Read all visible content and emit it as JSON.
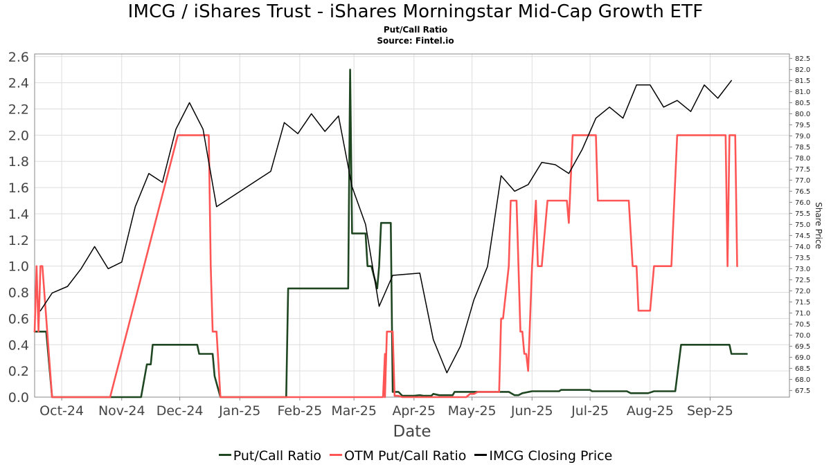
{
  "header": {
    "title": "IMCG / iShares Trust - iShares Morningstar Mid-Cap Growth ETF",
    "subtitle": "Put/Call Ratio",
    "source": "Source: Fintel.io"
  },
  "colors": {
    "put_call": "#1e4620",
    "otm_put_call": "#ff5555",
    "price": "#000000",
    "grid": "#dddddd"
  },
  "chart_data": {
    "type": "line",
    "title": "IMCG / iShares Trust - iShares Morningstar Mid-Cap Growth ETF",
    "subtitle": "Put/Call Ratio",
    "xlabel": "Date",
    "ylabel": "",
    "y2label": "Share Price",
    "xlim": [
      "2024-09-17",
      "2025-10-12"
    ],
    "ylim": [
      0,
      2.62
    ],
    "y2lim": [
      67.2,
      82.7
    ],
    "x_ticks": [
      {
        "date": "2024-10-01",
        "label": "Oct-24"
      },
      {
        "date": "2024-11-01",
        "label": "Nov-24"
      },
      {
        "date": "2024-12-01",
        "label": "Dec-24"
      },
      {
        "date": "2025-01-01",
        "label": "Jan-25"
      },
      {
        "date": "2025-02-01",
        "label": "Feb-25"
      },
      {
        "date": "2025-03-01",
        "label": "Mar-25"
      },
      {
        "date": "2025-04-01",
        "label": "Apr-25"
      },
      {
        "date": "2025-05-01",
        "label": "May-25"
      },
      {
        "date": "2025-06-01",
        "label": "Jun-25"
      },
      {
        "date": "2025-07-01",
        "label": "Jul-25"
      },
      {
        "date": "2025-08-01",
        "label": "Aug-25"
      },
      {
        "date": "2025-09-01",
        "label": "Sep-25"
      }
    ],
    "y_ticks": [
      "0.0",
      "0.2",
      "0.4",
      "0.6",
      "0.8",
      "1.0",
      "1.2",
      "1.4",
      "1.6",
      "1.8",
      "2.0",
      "2.2",
      "2.4",
      "2.6"
    ],
    "y2_ticks": [
      "67.5",
      "68.0",
      "68.5",
      "69.0",
      "69.5",
      "70.0",
      "70.5",
      "71.0",
      "71.5",
      "72.0",
      "72.5",
      "73.0",
      "73.5",
      "74.0",
      "74.5",
      "75.0",
      "75.5",
      "76.0",
      "76.5",
      "77.0",
      "77.5",
      "78.0",
      "78.5",
      "79.0",
      "79.5",
      "80.0",
      "80.5",
      "81.0",
      "81.5",
      "82.0",
      "82.5"
    ],
    "grid": true,
    "legend_position": "bottom",
    "series": [
      {
        "name": "Put/Call Ratio",
        "axis": "left",
        "points": [
          [
            "2024-09-17",
            0.5
          ],
          [
            "2024-09-20",
            0.5
          ],
          [
            "2024-09-23",
            0.5
          ],
          [
            "2024-09-26",
            0.0
          ],
          [
            "2024-10-15",
            0.0
          ],
          [
            "2024-11-01",
            0.0
          ],
          [
            "2024-11-11",
            0.0
          ],
          [
            "2024-11-14",
            0.25
          ],
          [
            "2024-11-16",
            0.25
          ],
          [
            "2024-11-17",
            0.4
          ],
          [
            "2024-12-10",
            0.4
          ],
          [
            "2024-12-11",
            0.33
          ],
          [
            "2024-12-18",
            0.33
          ],
          [
            "2024-12-19",
            0.16
          ],
          [
            "2024-12-22",
            0.0
          ],
          [
            "2025-01-25",
            0.0
          ],
          [
            "2025-01-26",
            0.83
          ],
          [
            "2025-02-24",
            0.83
          ],
          [
            "2025-02-26",
            0.83
          ],
          [
            "2025-02-27",
            2.5
          ],
          [
            "2025-02-28",
            1.25
          ],
          [
            "2025-03-07",
            1.25
          ],
          [
            "2025-03-08",
            1.0
          ],
          [
            "2025-03-10",
            1.0
          ],
          [
            "2025-03-13",
            0.83
          ],
          [
            "2025-03-14",
            1.0
          ],
          [
            "2025-03-15",
            1.33
          ],
          [
            "2025-03-20",
            1.33
          ],
          [
            "2025-03-21",
            0.04
          ],
          [
            "2025-03-24",
            0.04
          ],
          [
            "2025-03-26",
            0.01
          ],
          [
            "2025-04-01",
            0.01
          ],
          [
            "2025-04-04",
            0.015
          ],
          [
            "2025-04-06",
            0.01
          ],
          [
            "2025-04-08",
            0.01
          ],
          [
            "2025-04-10",
            0.01
          ],
          [
            "2025-04-11",
            0.025
          ],
          [
            "2025-04-14",
            0.015
          ],
          [
            "2025-04-21",
            0.015
          ],
          [
            "2025-04-22",
            0.04
          ],
          [
            "2025-04-28",
            0.04
          ],
          [
            "2025-05-01",
            0.04
          ],
          [
            "2025-05-20",
            0.04
          ],
          [
            "2025-05-23",
            0.015
          ],
          [
            "2025-05-25",
            0.015
          ],
          [
            "2025-05-27",
            0.03
          ],
          [
            "2025-06-01",
            0.045
          ],
          [
            "2025-06-15",
            0.045
          ],
          [
            "2025-06-16",
            0.055
          ],
          [
            "2025-07-01",
            0.055
          ],
          [
            "2025-07-02",
            0.045
          ],
          [
            "2025-07-20",
            0.045
          ],
          [
            "2025-07-22",
            0.03
          ],
          [
            "2025-07-31",
            0.03
          ],
          [
            "2025-08-03",
            0.045
          ],
          [
            "2025-08-14",
            0.045
          ],
          [
            "2025-08-17",
            0.4
          ],
          [
            "2025-09-11",
            0.4
          ],
          [
            "2025-09-12",
            0.33
          ],
          [
            "2025-09-20",
            0.33
          ]
        ]
      },
      {
        "name": "OTM Put/Call Ratio",
        "axis": "left",
        "points": [
          [
            "2024-09-17",
            0.5
          ],
          [
            "2024-09-18",
            1.0
          ],
          [
            "2024-09-19",
            0.5
          ],
          [
            "2024-09-20",
            1.0
          ],
          [
            "2024-09-21",
            1.0
          ],
          [
            "2024-09-26",
            0.0
          ],
          [
            "2024-10-26",
            0.0
          ],
          [
            "2024-11-30",
            2.0
          ],
          [
            "2024-12-01",
            2.0
          ],
          [
            "2024-12-16",
            2.0
          ],
          [
            "2024-12-17",
            1.0
          ],
          [
            "2024-12-18",
            0.5
          ],
          [
            "2024-12-20",
            0.5
          ],
          [
            "2024-12-22",
            0.0
          ],
          [
            "2025-03-08",
            0.0
          ],
          [
            "2025-03-16",
            0.0
          ],
          [
            "2025-03-17",
            0.33
          ],
          [
            "2025-03-17",
            0.0
          ],
          [
            "2025-03-18",
            0.5
          ],
          [
            "2025-03-21",
            0.5
          ],
          [
            "2025-03-22",
            0.01
          ],
          [
            "2025-03-24",
            0.01
          ],
          [
            "2025-03-26",
            0.0
          ],
          [
            "2025-04-28",
            0.0
          ],
          [
            "2025-04-30",
            0.025
          ],
          [
            "2025-05-02",
            0.025
          ],
          [
            "2025-05-04",
            0.04
          ],
          [
            "2025-05-15",
            0.04
          ],
          [
            "2025-05-16",
            0.6
          ],
          [
            "2025-05-17",
            0.6
          ],
          [
            "2025-05-20",
            1.0
          ],
          [
            "2025-05-21",
            1.5
          ],
          [
            "2025-05-24",
            1.5
          ],
          [
            "2025-05-25",
            1.0
          ],
          [
            "2025-05-26",
            0.5
          ],
          [
            "2025-05-27",
            0.5
          ],
          [
            "2025-05-28",
            0.33
          ],
          [
            "2025-05-29",
            0.33
          ],
          [
            "2025-05-30",
            0.2
          ],
          [
            "2025-06-01",
            1.0
          ],
          [
            "2025-06-03",
            1.5
          ],
          [
            "2025-06-04",
            1.0
          ],
          [
            "2025-06-06",
            1.0
          ],
          [
            "2025-06-09",
            1.5
          ],
          [
            "2025-06-19",
            1.5
          ],
          [
            "2025-06-20",
            1.33
          ],
          [
            "2025-06-22",
            2.0
          ],
          [
            "2025-07-04",
            2.0
          ],
          [
            "2025-07-05",
            1.5
          ],
          [
            "2025-07-20",
            1.5
          ],
          [
            "2025-07-21",
            1.5
          ],
          [
            "2025-07-23",
            1.0
          ],
          [
            "2025-07-25",
            1.0
          ],
          [
            "2025-07-26",
            0.66
          ],
          [
            "2025-08-01",
            0.66
          ],
          [
            "2025-08-03",
            1.0
          ],
          [
            "2025-08-12",
            1.0
          ],
          [
            "2025-08-15",
            2.0
          ],
          [
            "2025-09-09",
            2.0
          ],
          [
            "2025-09-10",
            1.0
          ],
          [
            "2025-09-11",
            2.0
          ],
          [
            "2025-09-14",
            2.0
          ],
          [
            "2025-09-15",
            1.0
          ]
        ]
      },
      {
        "name": "IMCG Closing Price",
        "axis": "right",
        "points": [
          [
            "2024-09-20",
            71.1
          ],
          [
            "2024-09-26",
            71.9
          ],
          [
            "2024-10-04",
            72.2
          ],
          [
            "2024-10-11",
            73.0
          ],
          [
            "2024-10-18",
            74.0
          ],
          [
            "2024-10-25",
            73.0
          ],
          [
            "2024-11-01",
            73.3
          ],
          [
            "2024-11-08",
            75.8
          ],
          [
            "2024-11-15",
            77.3
          ],
          [
            "2024-11-22",
            76.9
          ],
          [
            "2024-11-29",
            79.3
          ],
          [
            "2024-12-06",
            80.5
          ],
          [
            "2024-12-13",
            79.3
          ],
          [
            "2024-12-20",
            75.8
          ],
          [
            "2024-12-27",
            76.2
          ],
          [
            "2025-01-03",
            76.6
          ],
          [
            "2025-01-10",
            77.0
          ],
          [
            "2025-01-17",
            77.4
          ],
          [
            "2025-01-24",
            79.6
          ],
          [
            "2025-01-31",
            79.1
          ],
          [
            "2025-02-07",
            80.0
          ],
          [
            "2025-02-14",
            79.2
          ],
          [
            "2025-02-21",
            79.9
          ],
          [
            "2025-02-28",
            76.7
          ],
          [
            "2025-03-07",
            75.0
          ],
          [
            "2025-03-14",
            71.3
          ],
          [
            "2025-03-21",
            72.7
          ],
          [
            "2025-04-04",
            72.8
          ],
          [
            "2025-04-11",
            69.8
          ],
          [
            "2025-04-18",
            68.3
          ],
          [
            "2025-04-25",
            69.5
          ],
          [
            "2025-05-02",
            71.6
          ],
          [
            "2025-05-09",
            73.1
          ],
          [
            "2025-05-16",
            77.2
          ],
          [
            "2025-05-23",
            76.5
          ],
          [
            "2025-05-30",
            76.8
          ],
          [
            "2025-06-06",
            77.8
          ],
          [
            "2025-06-13",
            77.7
          ],
          [
            "2025-06-20",
            77.3
          ],
          [
            "2025-06-27",
            78.4
          ],
          [
            "2025-07-04",
            79.8
          ],
          [
            "2025-07-11",
            80.3
          ],
          [
            "2025-07-18",
            79.8
          ],
          [
            "2025-07-25",
            81.3
          ],
          [
            "2025-08-01",
            81.3
          ],
          [
            "2025-08-08",
            80.3
          ],
          [
            "2025-08-15",
            80.6
          ],
          [
            "2025-08-22",
            80.1
          ],
          [
            "2025-08-29",
            81.3
          ],
          [
            "2025-09-05",
            80.7
          ],
          [
            "2025-09-12",
            81.5
          ]
        ]
      }
    ]
  }
}
